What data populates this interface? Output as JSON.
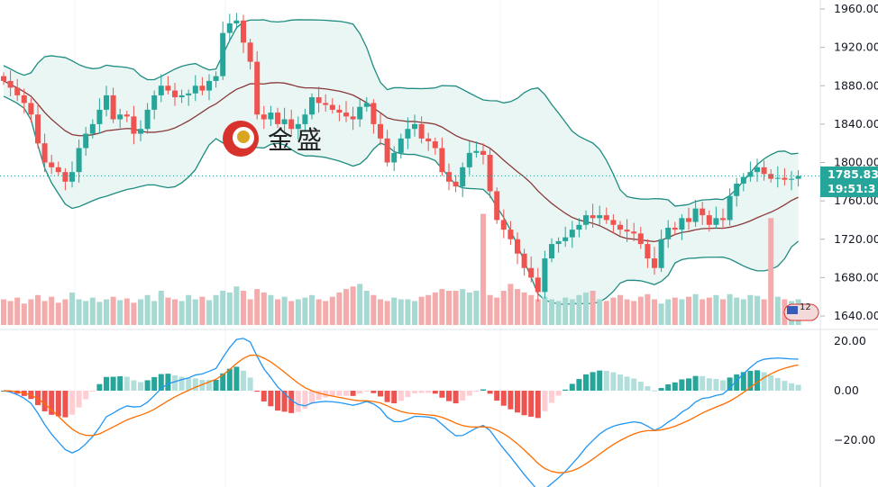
{
  "chart_data": [
    {
      "type": "candlestick",
      "panel": "price",
      "indicators": [
        "Bollinger Bands",
        "Moving Average"
      ],
      "y_ticks": [
        "1960.00",
        "1920.00",
        "1880.00",
        "1840.00",
        "1800.00",
        "1760.00",
        "1720.00",
        "1680.00",
        "1640.00"
      ],
      "ylim": [
        1640,
        1960
      ],
      "last_price": "1785.83",
      "countdown": "19:51:3",
      "close": [
        1885,
        1878,
        1870,
        1862,
        1850,
        1820,
        1800,
        1795,
        1790,
        1780,
        1790,
        1815,
        1830,
        1840,
        1855,
        1870,
        1845,
        1850,
        1848,
        1830,
        1835,
        1855,
        1870,
        1880,
        1875,
        1868,
        1870,
        1872,
        1880,
        1875,
        1885,
        1890,
        1935,
        1945,
        1948,
        1925,
        1905,
        1850,
        1845,
        1852,
        1840,
        1845,
        1835,
        1840,
        1850,
        1868,
        1862,
        1860,
        1855,
        1852,
        1848,
        1845,
        1858,
        1862,
        1840,
        1825,
        1800,
        1810,
        1825,
        1835,
        1840,
        1825,
        1822,
        1815,
        1790,
        1780,
        1775,
        1795,
        1810,
        1812,
        1808,
        1770,
        1740,
        1730,
        1720,
        1705,
        1690,
        1680,
        1665,
        1700,
        1715,
        1718,
        1722,
        1730,
        1735,
        1745,
        1742,
        1745,
        1740,
        1735,
        1730,
        1728,
        1726,
        1715,
        1700,
        1690,
        1720,
        1732,
        1730,
        1742,
        1738,
        1752,
        1745,
        1735,
        1742,
        1740,
        1765,
        1778,
        1785,
        1790,
        1795,
        1788,
        1783,
        1784,
        1782,
        1783,
        1786
      ],
      "volume": [
        30,
        28,
        32,
        25,
        30,
        35,
        28,
        33,
        26,
        30,
        38,
        30,
        28,
        32,
        27,
        30,
        33,
        29,
        31,
        26,
        30,
        35,
        28,
        40,
        32,
        30,
        28,
        35,
        30,
        33,
        29,
        35,
        40,
        38,
        45,
        40,
        30,
        42,
        38,
        35,
        30,
        33,
        28,
        30,
        32,
        35,
        30,
        28,
        33,
        38,
        42,
        45,
        48,
        40,
        35,
        30,
        28,
        32,
        30,
        30,
        28,
        33,
        35,
        38,
        42,
        40,
        40,
        42,
        38,
        40,
        130,
        35,
        32,
        40,
        48,
        42,
        38,
        35,
        30,
        33,
        30,
        28,
        32,
        30,
        35,
        38,
        40,
        30,
        28,
        32,
        35,
        30,
        28,
        33,
        36,
        30,
        25,
        30,
        32,
        30,
        33,
        36,
        30,
        32,
        35,
        30,
        36,
        32,
        30,
        35,
        34,
        30,
        125,
        33,
        30,
        28,
        30
      ]
    },
    {
      "type": "line",
      "panel": "MACD",
      "series": [
        "MACD",
        "Signal",
        "Histogram"
      ],
      "y_ticks": [
        "20.00",
        "0.00",
        "−20.00"
      ],
      "ylim": [
        -35,
        20
      ]
    }
  ],
  "colors": {
    "up": "#26a69a",
    "down": "#ef5350",
    "band": "#1e8c80",
    "band_fill": "#e9f6f4",
    "ma": "#8b3a3a",
    "macd": "#2196f3",
    "signal": "#ff6d00"
  },
  "logo": {
    "text": "金盛"
  },
  "flag_badge": {
    "text": "12"
  }
}
